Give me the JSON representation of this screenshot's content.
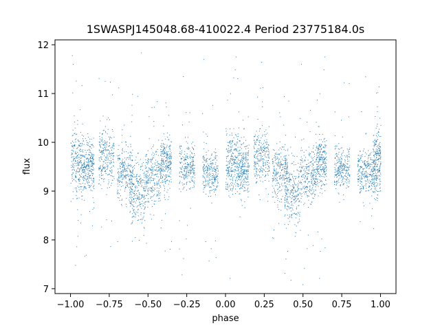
{
  "chart_data": {
    "type": "scatter",
    "title": "1SWASPJ145048.68-410022.4 Period 23775184.0s",
    "xlabel": "phase",
    "ylabel": "flux",
    "xlim": [
      -1.1,
      1.1
    ],
    "ylim": [
      6.9,
      12.1
    ],
    "xticks": [
      -1.0,
      -0.75,
      -0.5,
      -0.25,
      0.0,
      0.25,
      0.5,
      0.75,
      1.0
    ],
    "xtick_labels": [
      "−1.00",
      "−0.75",
      "−0.50",
      "−0.25",
      "0.00",
      "0.25",
      "0.50",
      "0.75",
      "1.00"
    ],
    "yticks": [
      7,
      8,
      9,
      10,
      11,
      12
    ],
    "ytick_labels": [
      "7",
      "8",
      "9",
      "10",
      "11",
      "12"
    ],
    "grid": false,
    "marker_color": "#1f77b4",
    "series": [
      {
        "note_summary": "dense point cloud, phase-folded light curve mirrored across phase 0",
        "clusters": [
          {
            "x": [
              -1.0,
              -0.92
            ],
            "y_center": 9.6,
            "y_spread": 0.6
          },
          {
            "x": [
              -0.92,
              -0.85
            ],
            "y_center": 9.5,
            "y_spread": 0.5
          },
          {
            "x": [
              -0.82,
              -0.72
            ],
            "y_center": 9.7,
            "y_spread": 0.5
          },
          {
            "x": [
              -0.7,
              -0.6
            ],
            "y_center": 9.4,
            "y_spread": 0.5
          },
          {
            "x": [
              -0.62,
              -0.52
            ],
            "y_center": 9.0,
            "y_spread": 0.6
          },
          {
            "x": [
              -0.52,
              -0.42
            ],
            "y_center": 9.3,
            "y_spread": 0.5
          },
          {
            "x": [
              -0.42,
              -0.35
            ],
            "y_center": 9.6,
            "y_spread": 0.5
          },
          {
            "x": [
              -0.3,
              -0.2
            ],
            "y_center": 9.5,
            "y_spread": 0.4
          },
          {
            "x": [
              -0.15,
              -0.05
            ],
            "y_center": 9.4,
            "y_spread": 0.4
          },
          {
            "x": [
              0.0,
              0.08
            ],
            "y_center": 9.6,
            "y_spread": 0.6
          },
          {
            "x": [
              0.08,
              0.15
            ],
            "y_center": 9.5,
            "y_spread": 0.5
          },
          {
            "x": [
              0.18,
              0.28
            ],
            "y_center": 9.7,
            "y_spread": 0.5
          },
          {
            "x": [
              0.3,
              0.4
            ],
            "y_center": 9.4,
            "y_spread": 0.5
          },
          {
            "x": [
              0.38,
              0.48
            ],
            "y_center": 9.0,
            "y_spread": 0.6
          },
          {
            "x": [
              0.48,
              0.58
            ],
            "y_center": 9.3,
            "y_spread": 0.5
          },
          {
            "x": [
              0.58,
              0.65
            ],
            "y_center": 9.6,
            "y_spread": 0.5
          },
          {
            "x": [
              0.7,
              0.8
            ],
            "y_center": 9.5,
            "y_spread": 0.4
          },
          {
            "x": [
              0.85,
              0.95
            ],
            "y_center": 9.4,
            "y_spread": 0.4
          },
          {
            "x": [
              0.95,
              1.0
            ],
            "y_center": 9.6,
            "y_spread": 0.6
          }
        ]
      }
    ]
  }
}
